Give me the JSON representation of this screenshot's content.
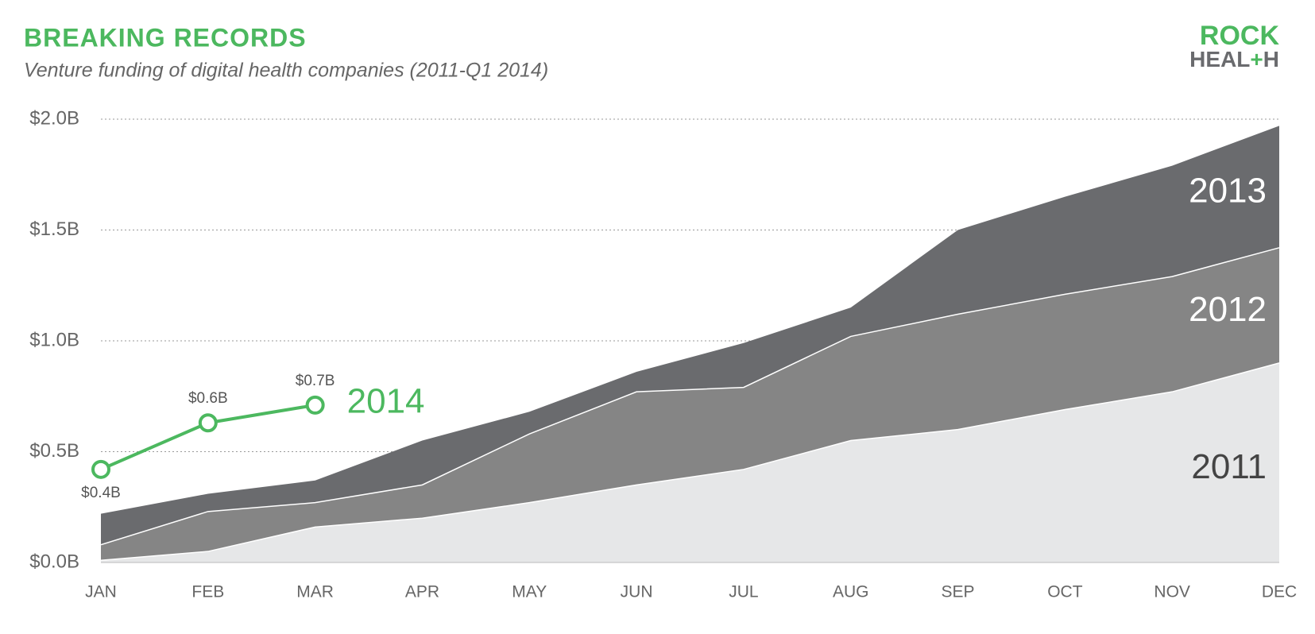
{
  "chart_data": {
    "type": "area",
    "title": "BREAKING RECORDS",
    "subtitle": "Venture funding of digital health companies (2011-Q1 2014)",
    "logo": [
      "ROCK",
      "HEAL",
      "+",
      "H"
    ],
    "categories": [
      "JAN",
      "FEB",
      "MAR",
      "APR",
      "MAY",
      "JUN",
      "JUL",
      "AUG",
      "SEP",
      "OCT",
      "NOV",
      "DEC"
    ],
    "series": [
      {
        "name": "2013",
        "color": "#6a6b6e",
        "values": [
          0.22,
          0.31,
          0.37,
          0.55,
          0.68,
          0.86,
          0.99,
          1.15,
          1.5,
          1.65,
          1.79,
          1.97
        ]
      },
      {
        "name": "2012",
        "color": "#858585",
        "values": [
          0.08,
          0.23,
          0.27,
          0.35,
          0.58,
          0.77,
          0.79,
          1.02,
          1.12,
          1.21,
          1.29,
          1.42
        ]
      },
      {
        "name": "2011",
        "color": "#e6e7e8",
        "values": [
          0.01,
          0.05,
          0.16,
          0.2,
          0.27,
          0.35,
          0.42,
          0.55,
          0.6,
          0.69,
          0.77,
          0.9
        ]
      },
      {
        "name": "2014",
        "color": "#4cb85f",
        "type": "line",
        "values": [
          0.42,
          0.63,
          0.71,
          null,
          null,
          null,
          null,
          null,
          null,
          null,
          null,
          null
        ],
        "value_labels": [
          "$0.4B",
          "$0.6B",
          "$0.7B",
          null,
          null,
          null,
          null,
          null,
          null,
          null,
          null,
          null
        ]
      }
    ],
    "ylim": [
      0,
      2.0
    ],
    "yticks": [
      {
        "value": 0,
        "label": "$0.0B"
      },
      {
        "value": 0.5,
        "label": "$0.5B"
      },
      {
        "value": 1.0,
        "label": "$1.0B"
      },
      {
        "value": 1.5,
        "label": "$1.5B"
      },
      {
        "value": 2.0,
        "label": "$2.0B"
      }
    ],
    "grid": true
  }
}
